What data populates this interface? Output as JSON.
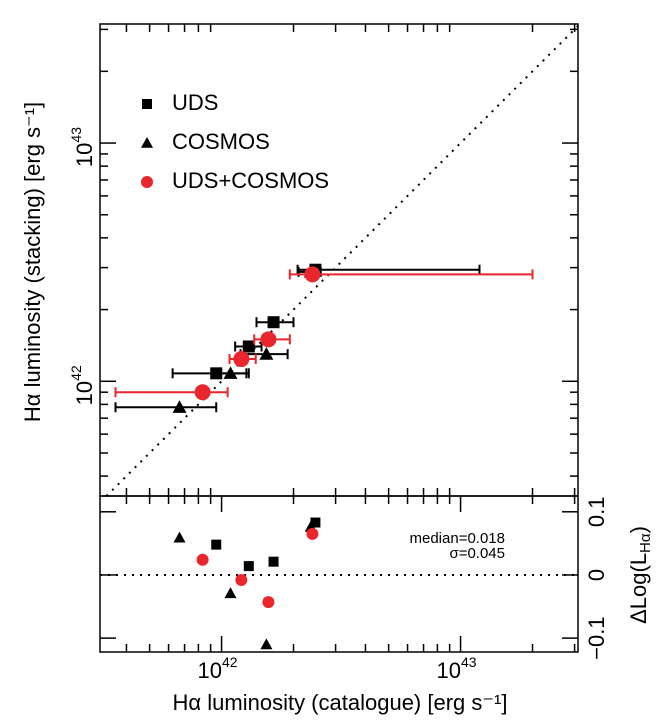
{
  "chart_data": [
    {
      "type": "scatter",
      "log_x": true,
      "log_y": true,
      "ylabel": "Hα luminosity (stacking) [erg s⁻¹]",
      "xlim": [
        3.1e+41,
        3.1e+43
      ],
      "ylim": [
        3.3e+41,
        3.16e+43
      ],
      "yticks": [
        {
          "value": 1e+42,
          "label": "10",
          "exponent": "42"
        },
        {
          "value": 1e+43,
          "label": "10",
          "exponent": "43"
        }
      ],
      "yminorticks": [
        4e+41,
        5e+41,
        6e+41,
        7e+41,
        8e+41,
        9e+41,
        2e+42,
        3e+42,
        4e+42,
        5e+42,
        6e+42,
        7e+42,
        8e+42,
        9e+42,
        2e+43,
        3e+43
      ],
      "xminorticks": [
        4e+41,
        5e+41,
        6e+41,
        7e+41,
        8e+41,
        9e+41,
        2e+42,
        3e+42,
        4e+42,
        5e+42,
        6e+42,
        7e+42,
        8e+42,
        9e+42,
        2e+43,
        3e+43
      ],
      "reference_line": "y=x",
      "series": [
        {
          "name": "UDS",
          "color": "#000000",
          "marker": "square",
          "x": [
            2.47e+42,
            1.65e+42,
            1.3e+42,
            9.5e+41
          ],
          "values": [
            2.94e+42,
            1.77e+42,
            1.4e+42,
            1.08e+42
          ],
          "x_low": [
            2.08e+42,
            1.4e+42,
            1.14e+42,
            6.24e+41
          ],
          "x_high": [
            1.2e+43,
            2e+42,
            1.47e+42,
            1.27e+42
          ]
        },
        {
          "name": "COSMOS",
          "color": "#000000",
          "marker": "triangle",
          "x": [
            2.36e+42,
            1.54e+42,
            1.09e+42,
            6.67e+41
          ],
          "values": [
            2.88e+42,
            1.3e+42,
            1.08e+42,
            7.78e+41
          ],
          "x_low": [
            2.1e+42,
            1.2e+42,
            9.7e+41,
            3.6e+41
          ],
          "x_high": [
            2.6e+42,
            1.89e+42,
            1.3e+42,
            9.5e+41
          ]
        },
        {
          "name": "UDS+COSMOS",
          "color": "#e8262b",
          "marker": "circle",
          "x": [
            2.4e+42,
            1.57e+42,
            1.21e+42,
            8.33e+41
          ],
          "values": [
            2.81e+42,
            1.5e+42,
            1.24e+42,
            9e+41
          ],
          "x_low": [
            1.93e+42,
            1.37e+42,
            1.08e+42,
            3.6e+41
          ],
          "x_high": [
            2e+43,
            1.93e+42,
            1.39e+42,
            1.06e+42
          ]
        }
      ]
    },
    {
      "type": "scatter",
      "log_x": true,
      "xlabel": "Hα luminosity (catalogue) [erg s⁻¹]",
      "ylabel_parts": [
        "ΔLog(L",
        "Hα",
        ")"
      ],
      "xlim": [
        3.1e+41,
        3.1e+43
      ],
      "ylim": [
        -0.122,
        0.125
      ],
      "xticks": [
        {
          "value": 1e+42,
          "label": "10",
          "exponent": "42"
        },
        {
          "value": 1e+43,
          "label": "10",
          "exponent": "43"
        }
      ],
      "xminorticks": [
        4e+41,
        5e+41,
        6e+41,
        7e+41,
        8e+41,
        9e+41,
        2e+42,
        3e+42,
        4e+42,
        5e+42,
        6e+42,
        7e+42,
        8e+42,
        9e+42,
        2e+43,
        3e+43
      ],
      "yticks": [
        {
          "value": -0.1,
          "label": "−0.1"
        },
        0,
        0.1
      ],
      "hline": 0,
      "annotations": [
        "median=0.018",
        "σ=0.045"
      ],
      "series": [
        {
          "name": "UDS",
          "color": "#000000",
          "marker": "square",
          "x": [
            2.47e+42,
            1.65e+42,
            1.3e+42,
            9.5e+41
          ],
          "values": [
            0.083,
            0.021,
            0.014,
            0.048
          ]
        },
        {
          "name": "COSMOS",
          "color": "#000000",
          "marker": "triangle",
          "x": [
            2.36e+42,
            1.54e+42,
            1.09e+42,
            6.67e+41
          ],
          "values": [
            0.076,
            -0.11,
            -0.029,
            0.059
          ]
        },
        {
          "name": "UDS+COSMOS",
          "color": "#e8262b",
          "marker": "circle",
          "x": [
            2.4e+42,
            1.57e+42,
            1.21e+42,
            8.33e+41
          ],
          "values": [
            0.065,
            -0.043,
            -0.008,
            0.024
          ]
        }
      ]
    }
  ]
}
